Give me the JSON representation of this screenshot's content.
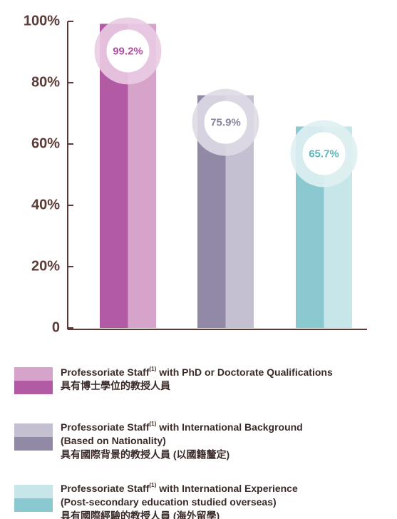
{
  "chart_data": {
    "type": "bar",
    "categories": [
      null,
      null,
      null
    ],
    "values": [
      99.2,
      75.9,
      65.7
    ],
    "value_labels": [
      "99.2%",
      "75.9%",
      "65.7%"
    ],
    "colors": [
      {
        "dark": "#b35aa5",
        "light": "#d6a3cb",
        "halo": "#e9cbe3",
        "text": "#b04fa2"
      },
      {
        "dark": "#9289a6",
        "light": "#c4c0d1",
        "halo": "#dedae5",
        "text": "#8a80a0"
      },
      {
        "dark": "#8ac9cf",
        "light": "#c6e6e9",
        "halo": "#dff0f2",
        "text": "#5db6be"
      }
    ],
    "ylim": [
      0,
      100
    ],
    "yticks": [
      0,
      {
        "value": 20,
        "label": "20%"
      },
      {
        "value": 40,
        "label": "40%"
      },
      {
        "value": 60,
        "label": "60%"
      },
      {
        "value": 80,
        "label": "80%"
      },
      {
        "value": 100,
        "label": "100%"
      }
    ],
    "legend": [
      {
        "prefix": "Professoriate Staff",
        "note": "(1)",
        "lines": [
          "with PhD or Doctorate Qualifications",
          "具有博士學位的教授人員"
        ]
      },
      {
        "prefix": "Professoriate Staff",
        "note": "(1)",
        "lines": [
          "with International Background",
          "(Based on Nationality)",
          "具有國際背景的教授人員 (以國籍釐定)"
        ]
      },
      {
        "prefix": "Professoriate Staff",
        "note": "(1)",
        "lines": [
          "with International Experience",
          "(Post-secondary education studied overseas)",
          "具有國際經驗的教授人員 (海外留學)"
        ]
      }
    ]
  }
}
